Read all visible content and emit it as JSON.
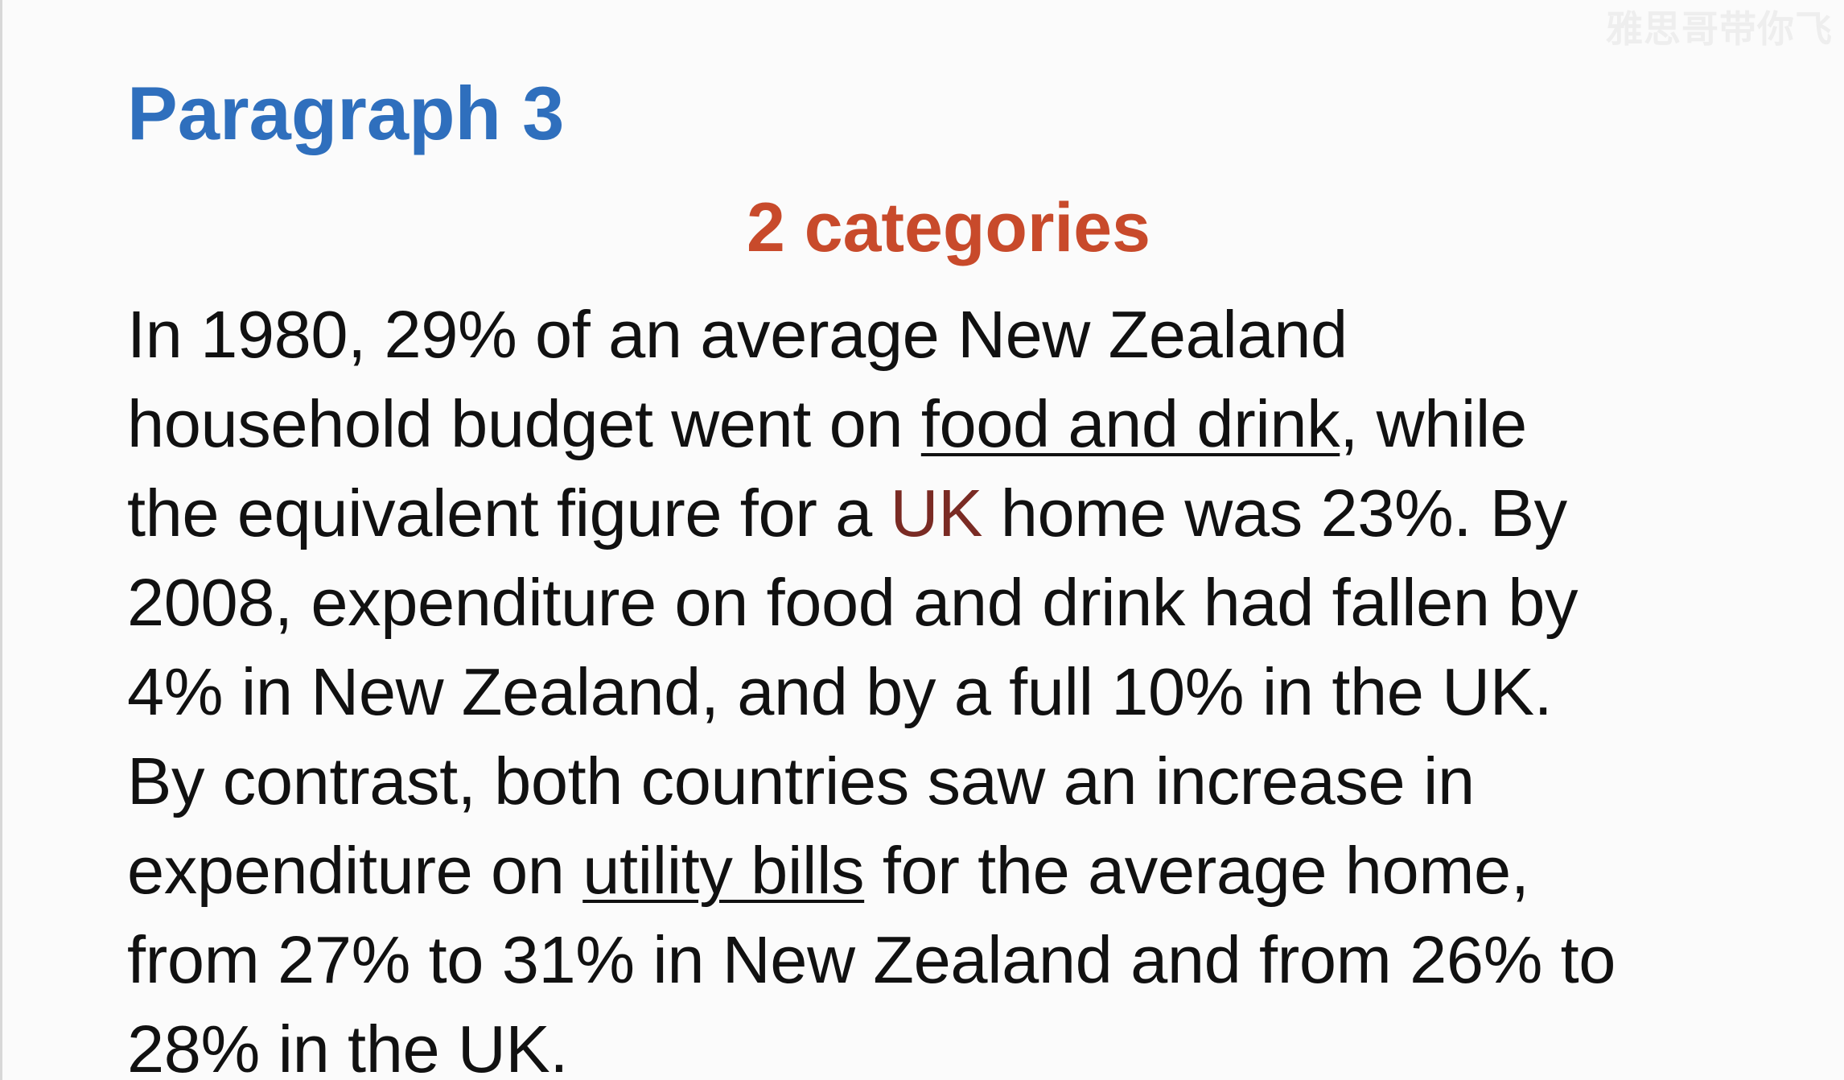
{
  "watermark": "雅思哥带你飞",
  "heading": "Paragraph 3",
  "subheading": "2 categories",
  "paragraph": {
    "l1": "In 1980, 29% of an average New Zealand",
    "l2_a": "household budget went on ",
    "l2_b": "food and drink",
    "l2_c": ", while",
    "l3_a": "the equivalent figure for a ",
    "l3_b": "UK",
    "l3_c": " home was 23%. By",
    "l4": "2008, expenditure on food and drink had fallen by",
    "l5": "4% in New Zealand, and by a full 10% in the UK.",
    "l6": "By contrast, both countries saw an increase in",
    "l7_a": "expenditure on ",
    "l7_b": "utility bills",
    "l7_c": " for the average home,",
    "l8": "from 27% to 31% in New Zealand and from 26% to",
    "l9": "28% in the UK."
  },
  "colors": {
    "heading": "#2f6fbd",
    "subheading": "#c84a2b",
    "highlight": "#7a2b24",
    "text": "#111111"
  }
}
